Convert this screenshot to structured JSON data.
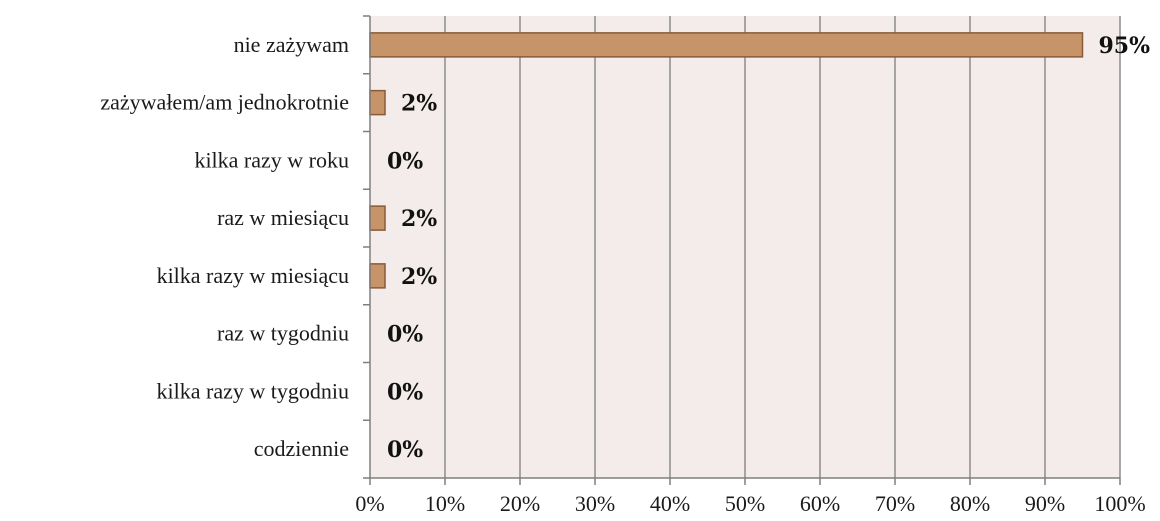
{
  "chart_data": {
    "type": "bar",
    "orientation": "horizontal",
    "categories": [
      "nie zażywam",
      "zażywałem/am  jednokrotnie",
      "kilka razy w roku",
      "raz w miesiącu",
      "kilka razy w miesiącu",
      "raz w tygodniu",
      "kilka razy w tygodniu",
      "codziennie"
    ],
    "values": [
      95,
      2,
      0,
      2,
      2,
      0,
      0,
      0
    ],
    "data_labels": [
      "95%",
      "2%",
      "0%",
      "2%",
      "2%",
      "0%",
      "0%",
      "0%"
    ],
    "xlim": [
      0,
      100
    ],
    "x_ticks": [
      "0%",
      "10%",
      "20%",
      "30%",
      "40%",
      "50%",
      "60%",
      "70%",
      "80%",
      "90%",
      "100%"
    ],
    "title": "",
    "xlabel": "",
    "ylabel": "",
    "grid": "vertical",
    "legend": "none",
    "colors": {
      "bar_fill": "#c7946a",
      "bar_stroke": "#8a5a36",
      "plot_background": "#f3ecea",
      "gridline": "#8c8c8c",
      "axis": "#7f7f7f"
    }
  }
}
